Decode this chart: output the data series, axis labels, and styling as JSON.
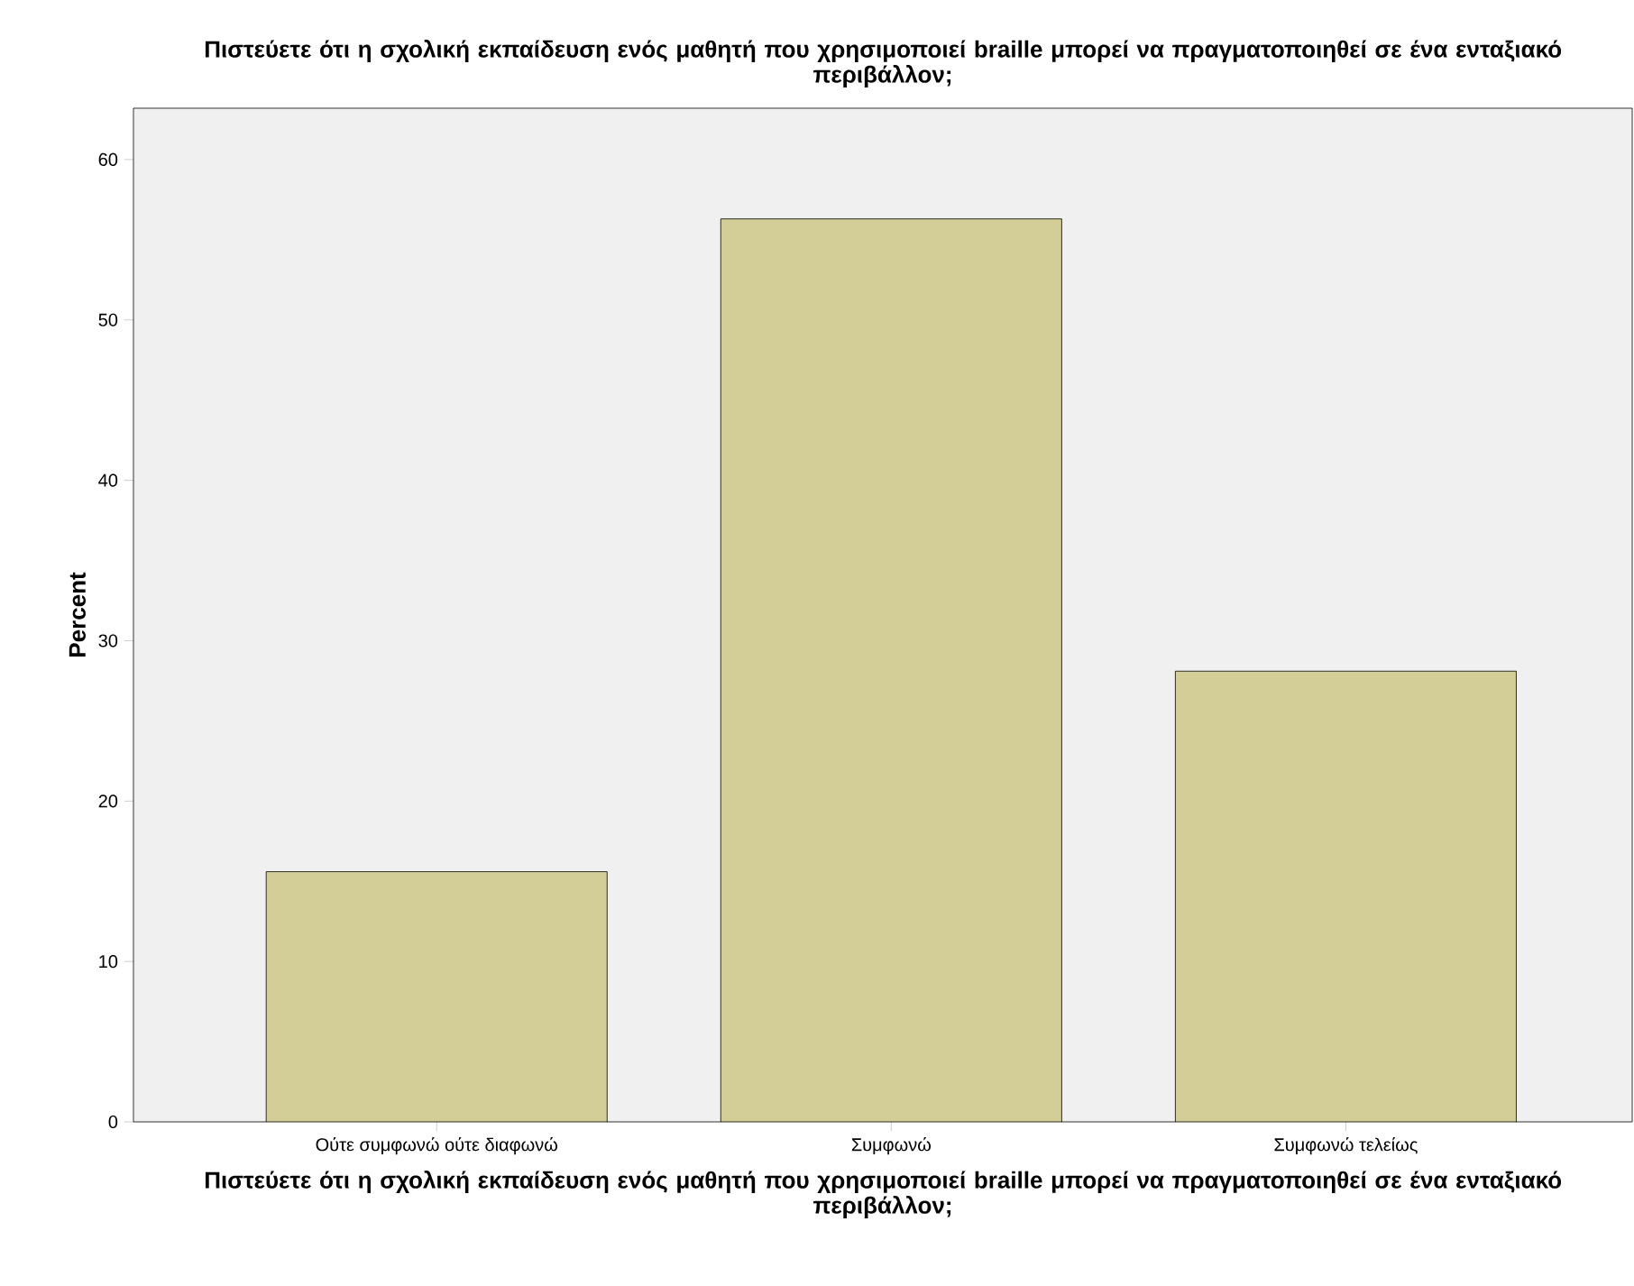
{
  "chart_data": {
    "type": "bar",
    "title": "Πιστεύετε ότι η σχολική εκπαίδευση ενός μαθητή που χρησιμοποιεί braille μπορεί να πραγματοποιηθεί σε ένα ενταξιακό περιβάλλον;",
    "xlabel": "Πιστεύετε ότι η σχολική εκπαίδευση ενός μαθητή που χρησιμοποιεί braille μπορεί να πραγματοποιηθεί σε ένα ενταξιακό περιβάλλον;",
    "ylabel": "Percent",
    "categories": [
      "Ούτε συμφωνώ ούτε διαφωνώ",
      "Συμφωνώ",
      "Συμφωνώ τελείως"
    ],
    "values": [
      15.6,
      56.3,
      28.1
    ],
    "color": "#d3ce97",
    "ylim": [
      0,
      63.2
    ],
    "yticks": [
      0,
      10,
      20,
      30,
      40,
      50,
      60
    ]
  }
}
